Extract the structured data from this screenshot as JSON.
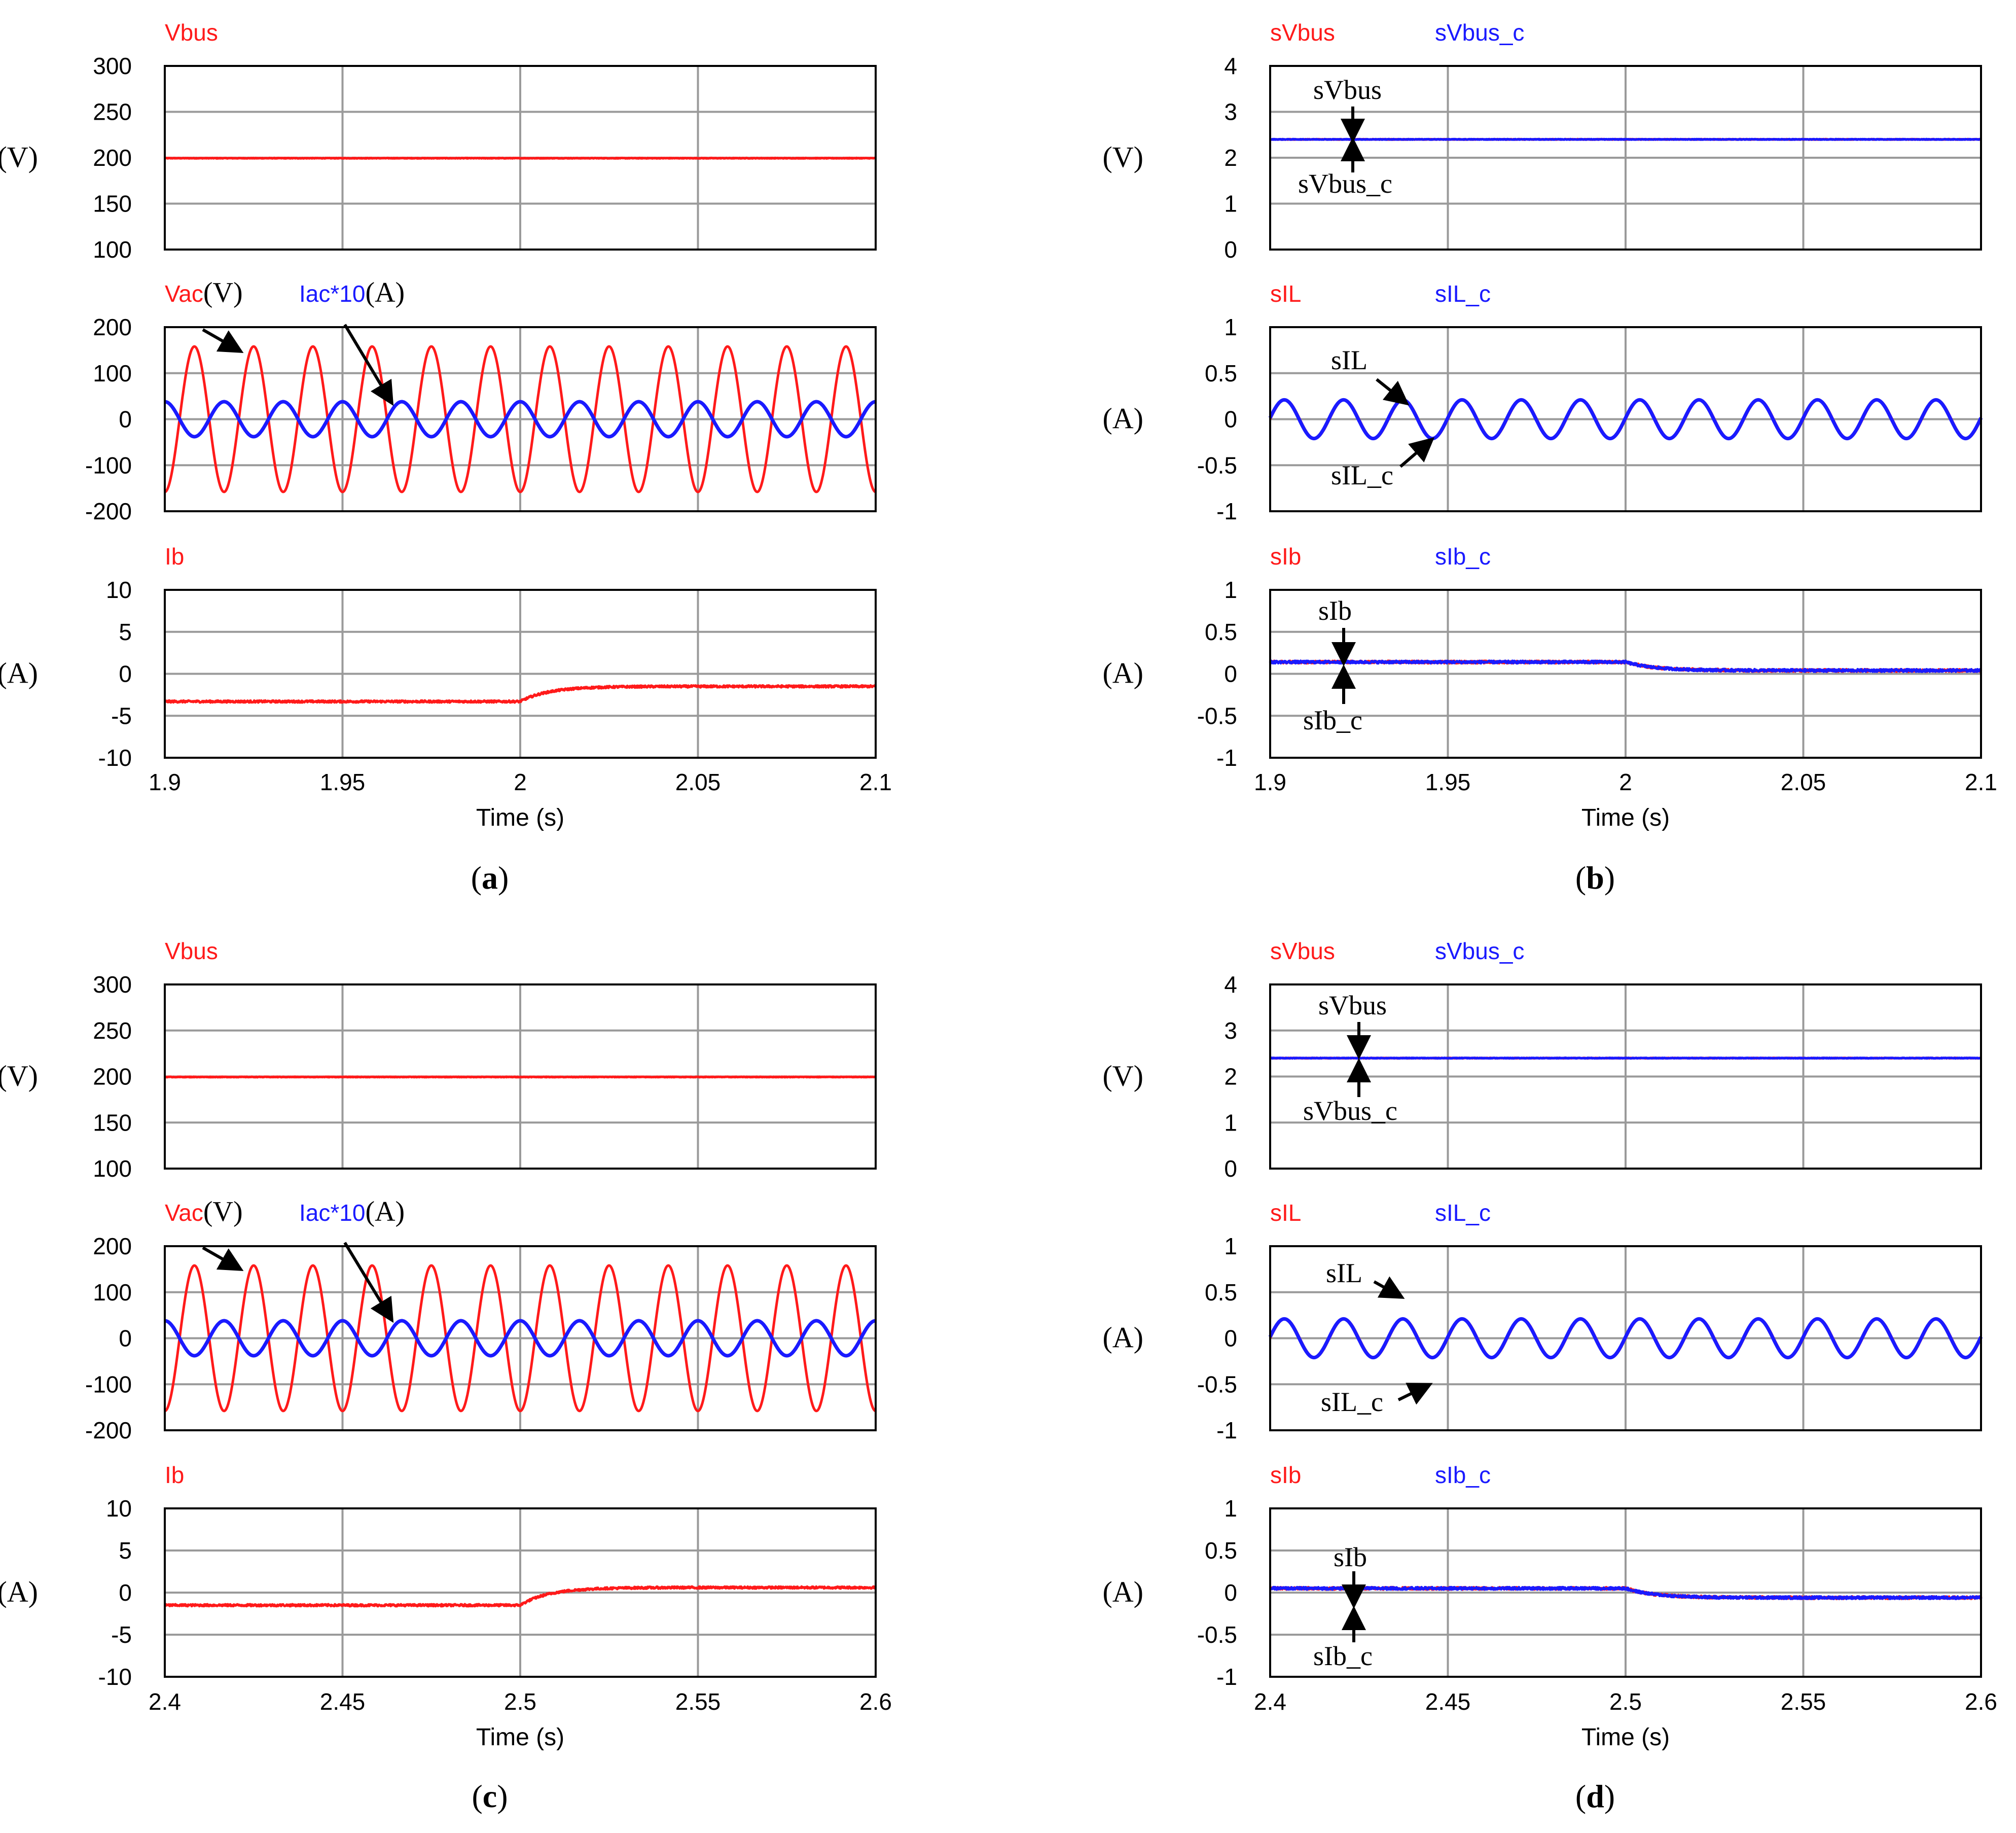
{
  "colors": {
    "red": "#ff1a1a",
    "blue": "#1a1aff",
    "grid": "#9a9a9a",
    "frame": "#000000",
    "arrow": "#000000"
  },
  "chart_data": [
    {
      "id": "a",
      "type": "line",
      "panel_label": "a",
      "x_range": [
        1.9,
        2.1
      ],
      "x_ticks": [
        "1.9",
        "1.95",
        "2",
        "2.05",
        "2.1"
      ],
      "xlabel": "Time (s)",
      "step_time": 2.0,
      "subplots": [
        {
          "ylim": [
            100,
            300
          ],
          "y_ticks": [
            "300",
            "250",
            "200",
            "150",
            "100"
          ],
          "y_unit": "(V)",
          "labels": [
            {
              "text": "Vbus",
              "color": "red"
            }
          ],
          "series": [
            {
              "name": "Vbus",
              "color": "red",
              "kind": "dc",
              "before": 199.5,
              "after": 199.5
            }
          ]
        },
        {
          "ylim": [
            -200,
            200
          ],
          "y_ticks": [
            "200",
            "100",
            "0",
            "-100",
            "-200"
          ],
          "y_unit": "",
          "labels": [
            {
              "text": "Vac",
              "color": "red",
              "suffix": "(V)"
            },
            {
              "text": "Iac*10",
              "color": "blue",
              "suffix": "(A)"
            }
          ],
          "series": [
            {
              "name": "Vac",
              "color": "red",
              "kind": "sine",
              "amp": 158,
              "freq": 60,
              "phase": -90
            },
            {
              "name": "Iac*10",
              "color": "blue",
              "kind": "sine",
              "amp": 38,
              "freq": 60,
              "phase": 90
            }
          ]
        },
        {
          "ylim": [
            -10,
            10
          ],
          "y_ticks": [
            "10",
            "5",
            "0",
            "-5",
            "-10"
          ],
          "y_unit": "(A)",
          "labels": [
            {
              "text": "Ib",
              "color": "red"
            }
          ],
          "series": [
            {
              "name": "Ib",
              "color": "red",
              "kind": "step",
              "before": -3.3,
              "after": -1.5,
              "noise": 0.12
            }
          ]
        }
      ],
      "annotations": [
        {
          "text": "Vac(V)",
          "subplot": 1
        },
        {
          "text": "Iac*10(A)",
          "subplot": 1
        }
      ]
    },
    {
      "id": "b",
      "type": "line",
      "panel_label": "b",
      "x_range": [
        1.9,
        2.1
      ],
      "x_ticks": [
        "1.9",
        "1.95",
        "2",
        "2.05",
        "2.1"
      ],
      "xlabel": "Time (s)",
      "step_time": 2.0,
      "subplots": [
        {
          "ylim": [
            0,
            4
          ],
          "y_ticks": [
            "4",
            "3",
            "2",
            "1",
            "0"
          ],
          "y_unit": "(V)",
          "labels": [
            {
              "text": "sVbus",
              "color": "red"
            },
            {
              "text": "sVbus_c",
              "color": "blue"
            }
          ],
          "series": [
            {
              "name": "sVbus",
              "color": "red",
              "kind": "dc",
              "before": 2.4,
              "after": 2.4
            },
            {
              "name": "sVbus_c",
              "color": "blue",
              "kind": "dc",
              "before": 2.4,
              "after": 2.4
            }
          ]
        },
        {
          "ylim": [
            -1,
            1
          ],
          "y_ticks": [
            "1",
            "0.5",
            "0",
            "-0.5",
            "-1"
          ],
          "y_unit": "(A)",
          "labels": [
            {
              "text": "sIL",
              "color": "red"
            },
            {
              "text": "sIL_c",
              "color": "blue"
            }
          ],
          "series": [
            {
              "name": "sIL",
              "color": "red",
              "kind": "sine",
              "amp": 0.21,
              "freq": 60,
              "phase": 0
            },
            {
              "name": "sIL_c",
              "color": "blue",
              "kind": "sine",
              "amp": 0.21,
              "freq": 60,
              "phase": 4
            }
          ]
        },
        {
          "ylim": [
            -1,
            1
          ],
          "y_ticks": [
            "1",
            "0.5",
            "0",
            "-0.5",
            "-1"
          ],
          "y_unit": "(A)",
          "labels": [
            {
              "text": "sIb",
              "color": "red"
            },
            {
              "text": "sIb_c",
              "color": "blue"
            }
          ],
          "series": [
            {
              "name": "sIb",
              "color": "red",
              "kind": "step",
              "before": 0.14,
              "after": 0.04,
              "noise": 0.015
            },
            {
              "name": "sIb_c",
              "color": "blue",
              "kind": "step",
              "before": 0.14,
              "after": 0.04,
              "noise": 0.015
            }
          ]
        }
      ],
      "annotations": [
        {
          "text": "sVbus",
          "subplot": 0
        },
        {
          "text": "sVbus_c",
          "subplot": 0
        },
        {
          "text": "sIL",
          "subplot": 1
        },
        {
          "text": "sIL_c",
          "subplot": 1
        },
        {
          "text": "sIb",
          "subplot": 2
        },
        {
          "text": "sIb_c",
          "subplot": 2
        }
      ]
    },
    {
      "id": "c",
      "type": "line",
      "panel_label": "c",
      "x_range": [
        2.4,
        2.6
      ],
      "x_ticks": [
        "2.4",
        "2.45",
        "2.5",
        "2.55",
        "2.6"
      ],
      "xlabel": "Time (s)",
      "step_time": 2.5,
      "subplots": [
        {
          "ylim": [
            100,
            300
          ],
          "y_ticks": [
            "300",
            "250",
            "200",
            "150",
            "100"
          ],
          "y_unit": "(V)",
          "labels": [
            {
              "text": "Vbus",
              "color": "red"
            }
          ],
          "series": [
            {
              "name": "Vbus",
              "color": "red",
              "kind": "dc",
              "before": 199.5,
              "after": 199.5
            }
          ]
        },
        {
          "ylim": [
            -200,
            200
          ],
          "y_ticks": [
            "200",
            "100",
            "0",
            "-100",
            "-200"
          ],
          "y_unit": "",
          "labels": [
            {
              "text": "Vac",
              "color": "red",
              "suffix": "(V)"
            },
            {
              "text": "Iac*10",
              "color": "blue",
              "suffix": "(A)"
            }
          ],
          "series": [
            {
              "name": "Vac",
              "color": "red",
              "kind": "sine",
              "amp": 158,
              "freq": 60,
              "phase": -90
            },
            {
              "name": "Iac*10",
              "color": "blue",
              "kind": "sine",
              "amp": 38,
              "freq": 60,
              "phase": 90
            }
          ]
        },
        {
          "ylim": [
            -10,
            10
          ],
          "y_ticks": [
            "10",
            "5",
            "0",
            "-5",
            "-10"
          ],
          "y_unit": "(A)",
          "labels": [
            {
              "text": "Ib",
              "color": "red"
            }
          ],
          "series": [
            {
              "name": "Ib",
              "color": "red",
              "kind": "step",
              "before": -1.5,
              "after": 0.6,
              "noise": 0.12
            }
          ]
        }
      ],
      "annotations": [
        {
          "text": "Vac(V)",
          "subplot": 1
        },
        {
          "text": "Iac*10(A)",
          "subplot": 1
        }
      ]
    },
    {
      "id": "d",
      "type": "line",
      "panel_label": "d",
      "x_range": [
        2.4,
        2.6
      ],
      "x_ticks": [
        "2.4",
        "2.45",
        "2.5",
        "2.55",
        "2.6"
      ],
      "xlabel": "Time (s)",
      "step_time": 2.5,
      "subplots": [
        {
          "ylim": [
            0,
            4
          ],
          "y_ticks": [
            "4",
            "3",
            "2",
            "1",
            "0"
          ],
          "y_unit": "(V)",
          "labels": [
            {
              "text": "sVbus",
              "color": "red"
            },
            {
              "text": "sVbus_c",
              "color": "blue"
            }
          ],
          "series": [
            {
              "name": "sVbus",
              "color": "red",
              "kind": "dc",
              "before": 2.4,
              "after": 2.4
            },
            {
              "name": "sVbus_c",
              "color": "blue",
              "kind": "dc",
              "before": 2.4,
              "after": 2.4
            }
          ]
        },
        {
          "ylim": [
            -1,
            1
          ],
          "y_ticks": [
            "1",
            "0.5",
            "0",
            "-0.5",
            "-1"
          ],
          "y_unit": "(A)",
          "labels": [
            {
              "text": "sIL",
              "color": "red"
            },
            {
              "text": "sIL_c",
              "color": "blue"
            }
          ],
          "series": [
            {
              "name": "sIL",
              "color": "red",
              "kind": "sine",
              "amp": 0.21,
              "freq": 60,
              "phase": 0
            },
            {
              "name": "sIL_c",
              "color": "blue",
              "kind": "sine",
              "amp": 0.21,
              "freq": 60,
              "phase": 4
            }
          ]
        },
        {
          "ylim": [
            -1,
            1
          ],
          "y_ticks": [
            "1",
            "0.5",
            "0",
            "-0.5",
            "-1"
          ],
          "y_unit": "(A)",
          "labels": [
            {
              "text": "sIb",
              "color": "red"
            },
            {
              "text": "sIb_c",
              "color": "blue"
            }
          ],
          "series": [
            {
              "name": "sIb",
              "color": "red",
              "kind": "step",
              "before": 0.05,
              "after": -0.06,
              "noise": 0.015
            },
            {
              "name": "sIb_c",
              "color": "blue",
              "kind": "step",
              "before": 0.05,
              "after": -0.06,
              "noise": 0.015
            }
          ]
        }
      ],
      "annotations": [
        {
          "text": "sVbus",
          "subplot": 0
        },
        {
          "text": "sVbus_c",
          "subplot": 0
        },
        {
          "text": "sIL",
          "subplot": 1
        },
        {
          "text": "sIL_c",
          "subplot": 1
        },
        {
          "text": "sIb",
          "subplot": 2
        },
        {
          "text": "sIb_c",
          "subplot": 2
        }
      ]
    }
  ]
}
